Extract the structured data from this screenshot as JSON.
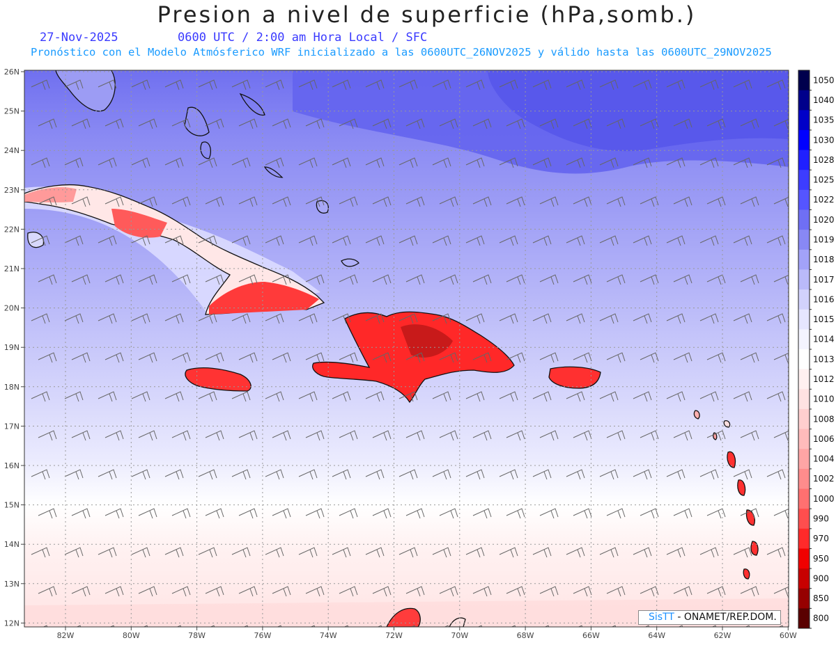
{
  "title": "Presion a nivel de superficie (hPa,somb.)",
  "date": "27-Nov-2025",
  "time_line": "0600 UTC / 2:00 am Hora Local / SFC",
  "forecast_line": "Pronóstico con el Modelo Atmósferico WRF inicializado a las 0600UTC_26NOV2025 y válido hasta las  0600UTC_29NOV2025",
  "credit": {
    "logo": "SisTT",
    "text": "- ONAMET/REP.DOM."
  },
  "lat_labels": [
    "26N",
    "25N",
    "24N",
    "23N",
    "22N",
    "21N",
    "20N",
    "19N",
    "18N",
    "17N",
    "16N",
    "15N",
    "14N",
    "13N",
    "12N"
  ],
  "lon_labels": [
    "82W",
    "80W",
    "78W",
    "76W",
    "74W",
    "72W",
    "70W",
    "68W",
    "66W",
    "64W",
    "62W",
    "60W"
  ],
  "colorbar": {
    "labels": [
      "1050",
      "1040",
      "1035",
      "1030",
      "1028",
      "1025",
      "1022",
      "1020",
      "1019",
      "1018",
      "1017",
      "1016",
      "1015",
      "1014",
      "1013",
      "1012",
      "1010",
      "1008",
      "1006",
      "1004",
      "1002",
      "1000",
      "990",
      "970",
      "950",
      "900",
      "850",
      "800"
    ],
    "colors": [
      "#00004d",
      "#00008b",
      "#0000c8",
      "#0000ff",
      "#2020ff",
      "#3d3dff",
      "#5555ff",
      "#6f6ff5",
      "#8888f5",
      "#a2a2f8",
      "#babafa",
      "#d2d2fc",
      "#e6e6fe",
      "#f4f4ff",
      "#ffffff",
      "#fff0f0",
      "#ffe2e2",
      "#ffcfcf",
      "#ffbbbb",
      "#ffa5a5",
      "#ff8c8c",
      "#ff7070",
      "#ff4e4e",
      "#ff2a2a",
      "#f00000",
      "#c80000",
      "#960000",
      "#5a0000"
    ]
  }
}
